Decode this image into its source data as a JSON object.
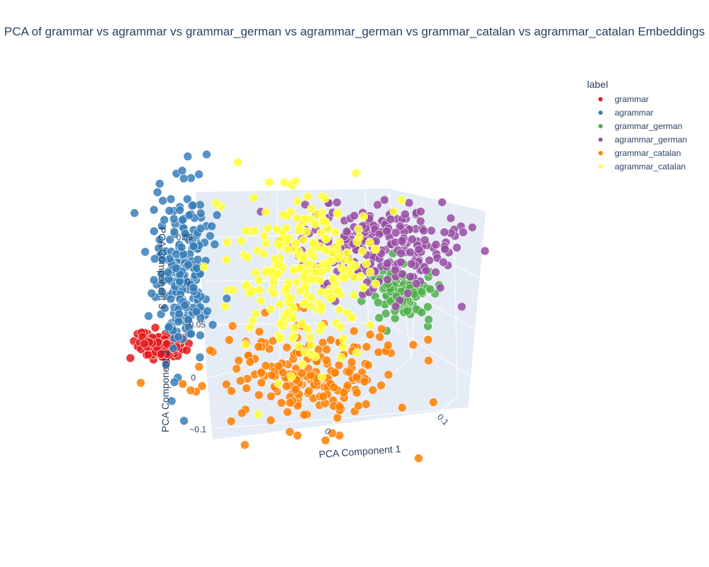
{
  "chart_data": {
    "type": "scatter",
    "subtype": "3d",
    "title": "PCA of grammar vs agrammar vs grammar_german vs agrammar_german vs grammar_catalan vs agrammar_catalan Embeddings",
    "axes": {
      "x": {
        "label": "PCA Component 1",
        "ticks": [
          "0",
          "0.1"
        ]
      },
      "y": {
        "label": "PCA Component 2",
        "ticks": [
          "0",
          "−0.1"
        ]
      },
      "z": {
        "label": "PCA Component 3",
        "ticks": [
          "0.05",
          "0",
          "−0.05"
        ]
      }
    },
    "legend": {
      "title": "label",
      "position": "top-right"
    },
    "series": [
      {
        "name": "grammar",
        "color": "#e41a1c",
        "n_points": 110,
        "x_center": -0.14,
        "y_center": -0.06,
        "z_center": -0.065,
        "x_spread": 0.012,
        "z_spread": 0.008
      },
      {
        "name": "agrammar",
        "color": "#377eb8",
        "n_points": 230,
        "x_center": -0.13,
        "y_center": 0.02,
        "z_center": 0.0,
        "x_spread": 0.012,
        "z_spread": 0.05
      },
      {
        "name": "grammar_german",
        "color": "#4daf4a",
        "n_points": 110,
        "x_center": 0.06,
        "y_center": 0.04,
        "z_center": -0.02,
        "x_spread": 0.015,
        "z_spread": 0.015
      },
      {
        "name": "agrammar_german",
        "color": "#984ea3",
        "n_points": 240,
        "x_center": 0.04,
        "y_center": 0.05,
        "z_center": 0.03,
        "x_spread": 0.035,
        "z_spread": 0.025
      },
      {
        "name": "grammar_catalan",
        "color": "#ff7f00",
        "n_points": 210,
        "x_center": -0.01,
        "y_center": -0.04,
        "z_center": -0.1,
        "x_spread": 0.04,
        "z_spread": 0.03
      },
      {
        "name": "agrammar_catalan",
        "color": "#ffff33",
        "n_points": 260,
        "x_center": -0.02,
        "y_center": 0.0,
        "z_center": 0.01,
        "x_spread": 0.03,
        "z_spread": 0.05
      }
    ]
  },
  "legend_items": [
    "grammar",
    "agrammar",
    "grammar_german",
    "agrammar_german",
    "grammar_catalan",
    "agrammar_catalan"
  ]
}
